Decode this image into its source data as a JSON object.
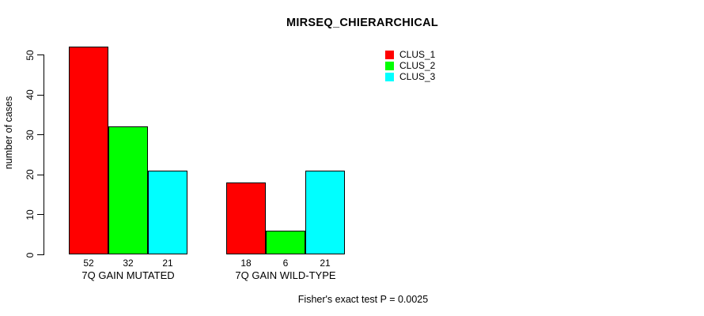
{
  "chart_data": {
    "type": "bar",
    "title": "MIRSEQ_CHIERARCHICAL",
    "ylabel": "number of cases",
    "xlabel": "",
    "categories": [
      "7Q GAIN MUTATED",
      "7Q GAIN WILD-TYPE"
    ],
    "series": [
      {
        "name": "CLUS_1",
        "color": "#FF0000",
        "values": [
          52,
          18
        ]
      },
      {
        "name": "CLUS_2",
        "color": "#00FF00",
        "values": [
          32,
          6
        ]
      },
      {
        "name": "CLUS_3",
        "color": "#00FFFF",
        "values": [
          21,
          21
        ]
      }
    ],
    "bar_value_labels": [
      [
        52,
        32,
        21
      ],
      [
        18,
        6,
        21
      ]
    ],
    "ylim": [
      0,
      50
    ],
    "yticks": [
      0,
      10,
      20,
      30,
      40,
      50
    ],
    "grid": false,
    "legend_position": "top-right",
    "footnote": "Fisher's exact test P = 0.0025"
  }
}
